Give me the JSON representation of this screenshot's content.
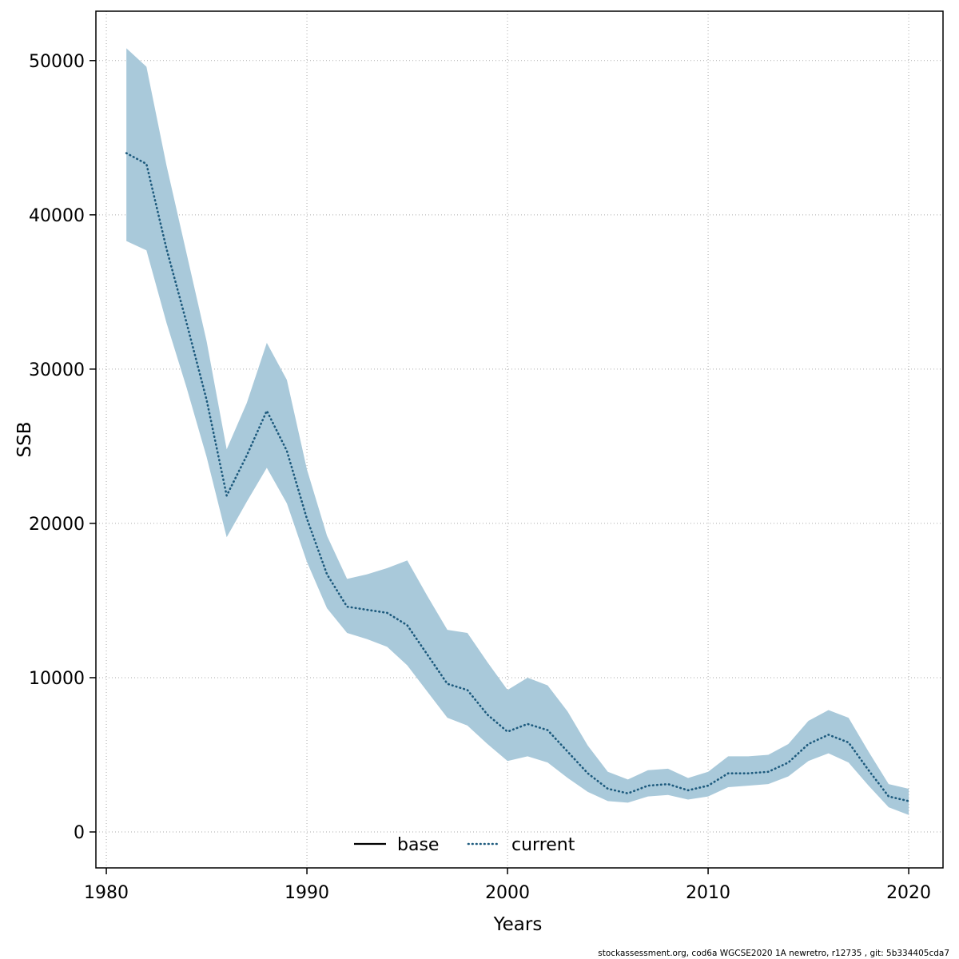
{
  "figure": {
    "footer": "stockassessment.org, cod6a WGCSE2020 1A newretro, r12735 , git: 5b334405cda7"
  },
  "chart_data": {
    "type": "line",
    "title": "",
    "xlabel": "Years",
    "ylabel": "SSB",
    "xlim": [
      1979.48,
      2021.71
    ],
    "ylim": [
      -2330,
      53200
    ],
    "xticks": [
      1980,
      1990,
      2000,
      2010,
      2020
    ],
    "yticks": [
      0,
      10000,
      20000,
      30000,
      40000,
      50000
    ],
    "grid": "dotted",
    "colors": {
      "band": "#a9c9da",
      "current": "#1d5a7d",
      "base": "#000000",
      "grid": "#aaaaaa"
    },
    "legend": {
      "position": "bottom-center-inside",
      "entries": [
        {
          "label": "base",
          "style": "solid",
          "color": "#000000"
        },
        {
          "label": "current",
          "style": "dotted",
          "color": "#1d5a7d"
        }
      ]
    },
    "x": [
      1981,
      1982,
      1983,
      1984,
      1985,
      1986,
      1987,
      1988,
      1989,
      1990,
      1991,
      1992,
      1993,
      1994,
      1995,
      1996,
      1997,
      1998,
      1999,
      2000,
      2001,
      2002,
      2003,
      2004,
      2005,
      2006,
      2007,
      2008,
      2009,
      2010,
      2011,
      2012,
      2013,
      2014,
      2015,
      2016,
      2017,
      2018,
      2019,
      2020
    ],
    "series": [
      {
        "name": "current",
        "values": [
          44000,
          43300,
          37800,
          33000,
          28000,
          21800,
          24400,
          27300,
          24700,
          20300,
          16700,
          14600,
          14400,
          14200,
          13400,
          11500,
          9600,
          9200,
          7600,
          6500,
          7000,
          6600,
          5200,
          3800,
          2800,
          2500,
          3000,
          3100,
          2700,
          3000,
          3800,
          3800,
          3900,
          4500,
          5700,
          6300,
          5800,
          4000,
          2300,
          2000
        ]
      }
    ],
    "band": {
      "lower": [
        38300,
        37700,
        33000,
        28800,
        24300,
        19100,
        21400,
        23600,
        21300,
        17500,
        14500,
        12900,
        12500,
        12000,
        10800,
        9100,
        7400,
        6900,
        5700,
        4600,
        4900,
        4500,
        3500,
        2600,
        2000,
        1900,
        2300,
        2400,
        2100,
        2300,
        2900,
        3000,
        3100,
        3600,
        4600,
        5100,
        4500,
        3000,
        1600,
        1100
      ],
      "upper": [
        50800,
        49600,
        43200,
        37500,
        31800,
        24800,
        27800,
        31700,
        29300,
        23500,
        19200,
        16400,
        16700,
        17100,
        17600,
        15300,
        13100,
        12900,
        11000,
        9200,
        10000,
        9500,
        7800,
        5600,
        3900,
        3400,
        4000,
        4100,
        3500,
        3900,
        4900,
        4900,
        5000,
        5700,
        7200,
        7900,
        7400,
        5200,
        3100,
        2800
      ]
    }
  }
}
